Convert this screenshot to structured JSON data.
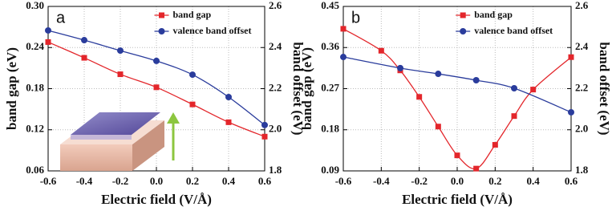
{
  "chart_data": [
    {
      "type": "line",
      "panel": "a",
      "xlabel": "Electric field (V/Å)",
      "ylabel": "band gap (eV)",
      "y2label": "band offset (eV)",
      "x": [
        -0.6,
        -0.4,
        -0.2,
        0.0,
        0.2,
        0.4,
        0.6
      ],
      "xlim": [
        -0.6,
        0.6
      ],
      "xticks": [
        -0.6,
        -0.4,
        -0.2,
        {
          "value": 0,
          "label": "0.0"
        },
        0.2,
        0.4,
        0.6
      ],
      "ylim": [
        0.06,
        0.3
      ],
      "yticks": [
        0.06,
        0.12,
        0.18,
        0.24,
        {
          "value": 0.3,
          "label": "0.30"
        }
      ],
      "y2lim": [
        1.8,
        2.6
      ],
      "y2ticks": [
        1.8,
        {
          "value": 2,
          "label": "2.0"
        },
        2.2,
        2.4,
        2.6
      ],
      "grid": true,
      "legend": "upper right",
      "series": [
        {
          "name": "band gap",
          "color": "#e3262b",
          "marker": "square",
          "values": [
            0.248,
            0.225,
            0.201,
            0.182,
            0.157,
            0.131,
            0.11
          ]
        },
        {
          "name": "valence band offset",
          "color": "#2a3c9c",
          "marker": "circle",
          "axis": "y2",
          "values": [
            2.483,
            2.436,
            2.385,
            2.335,
            2.268,
            2.159,
            2.023
          ]
        }
      ]
    },
    {
      "type": "line",
      "panel": "b",
      "xlabel": "Electric field (V/Å)",
      "ylabel": "band gap (eV)",
      "y2label": "band offset (eV)",
      "x": [
        -0.6,
        -0.4,
        -0.3,
        -0.2,
        -0.1,
        0.0,
        0.1,
        0.2,
        0.3,
        0.4,
        0.6
      ],
      "xlim": [
        -0.6,
        0.6
      ],
      "xticks": [
        -0.6,
        -0.4,
        -0.2,
        {
          "value": 0,
          "label": "0.0"
        },
        0.2,
        0.4,
        0.6
      ],
      "ylim": [
        0.09,
        0.45
      ],
      "yticks": [
        0.09,
        0.18,
        0.27,
        0.36,
        0.45
      ],
      "y2lim": [
        1.8,
        2.6
      ],
      "y2ticks": [
        1.8,
        {
          "value": 2,
          "label": "2.0"
        },
        2.2,
        2.4,
        2.6
      ],
      "grid": true,
      "legend": "upper right",
      "series": [
        {
          "name": "band gap",
          "color": "#e3262b",
          "marker": "square",
          "values": [
            0.401,
            0.353,
            0.31,
            0.252,
            0.187,
            0.124,
            0.095,
            0.147,
            0.21,
            0.268,
            0.339
          ]
        },
        {
          "name": "valence band offset",
          "color": "#2a3c9c",
          "marker": "circle",
          "axis": "y2",
          "values": [
            2.354,
            null,
            2.3,
            null,
            2.272,
            null,
            2.241,
            null,
            2.202,
            null,
            2.085
          ]
        }
      ]
    }
  ]
}
